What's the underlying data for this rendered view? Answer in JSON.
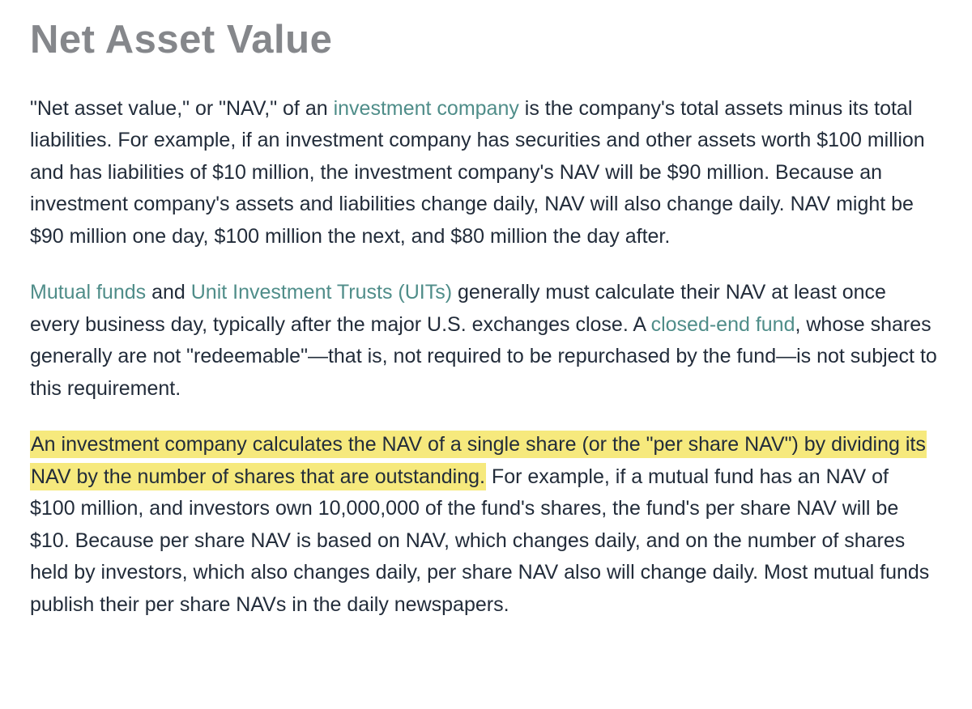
{
  "page": {
    "title": "Net Asset Value",
    "colors": {
      "title": "#85878b",
      "body": "#222c3a",
      "link": "#4f8d89",
      "highlight": "#f6e97d"
    },
    "paragraphs": [
      {
        "segments": [
          {
            "type": "text",
            "text": "\"Net asset value,\" or \"NAV,\" of an "
          },
          {
            "type": "link",
            "name": "investment-company-link",
            "text": "investment company"
          },
          {
            "type": "text",
            "text": " is the company's total assets minus its total liabilities. For example, if an investment company has securities and other assets worth $100 million and has liabilities of $10 million, the investment company's NAV will be $90 million. Because an investment company's assets and liabilities change daily, NAV will also change daily. NAV might be $90 million one day, $100 million the next, and $80 million the day after."
          }
        ]
      },
      {
        "segments": [
          {
            "type": "link",
            "name": "mutual-funds-link",
            "text": "Mutual funds"
          },
          {
            "type": "text",
            "text": " and "
          },
          {
            "type": "link",
            "name": "unit-investment-trusts-link",
            "text": "Unit Investment Trusts (UITs)"
          },
          {
            "type": "text",
            "text": " generally must calculate their NAV at least once every business day, typically after the major U.S. exchanges close. A "
          },
          {
            "type": "link",
            "name": "closed-end-fund-link",
            "text": "closed-end fund"
          },
          {
            "type": "text",
            "text": ", whose shares generally are not \"redeemable\"—that is, not required to be repurchased by the fund—is not subject to this requirement."
          }
        ]
      },
      {
        "segments": [
          {
            "type": "highlight",
            "name": "highlighted-sentence",
            "text": "An investment company calculates the NAV of a single share (or the \"per share NAV\") by dividing its NAV by the number of shares that are outstanding."
          },
          {
            "type": "text",
            "text": " For example, if a mutual fund has an NAV of $100 million, and investors own 10,000,000 of the fund's shares, the fund's per share NAV will be $10. Because per share NAV is based on NAV, which changes daily, and on the number of shares held by investors, which also changes daily, per share NAV also will change daily. Most mutual funds publish their per share NAVs in the daily newspapers."
          }
        ]
      }
    ]
  }
}
